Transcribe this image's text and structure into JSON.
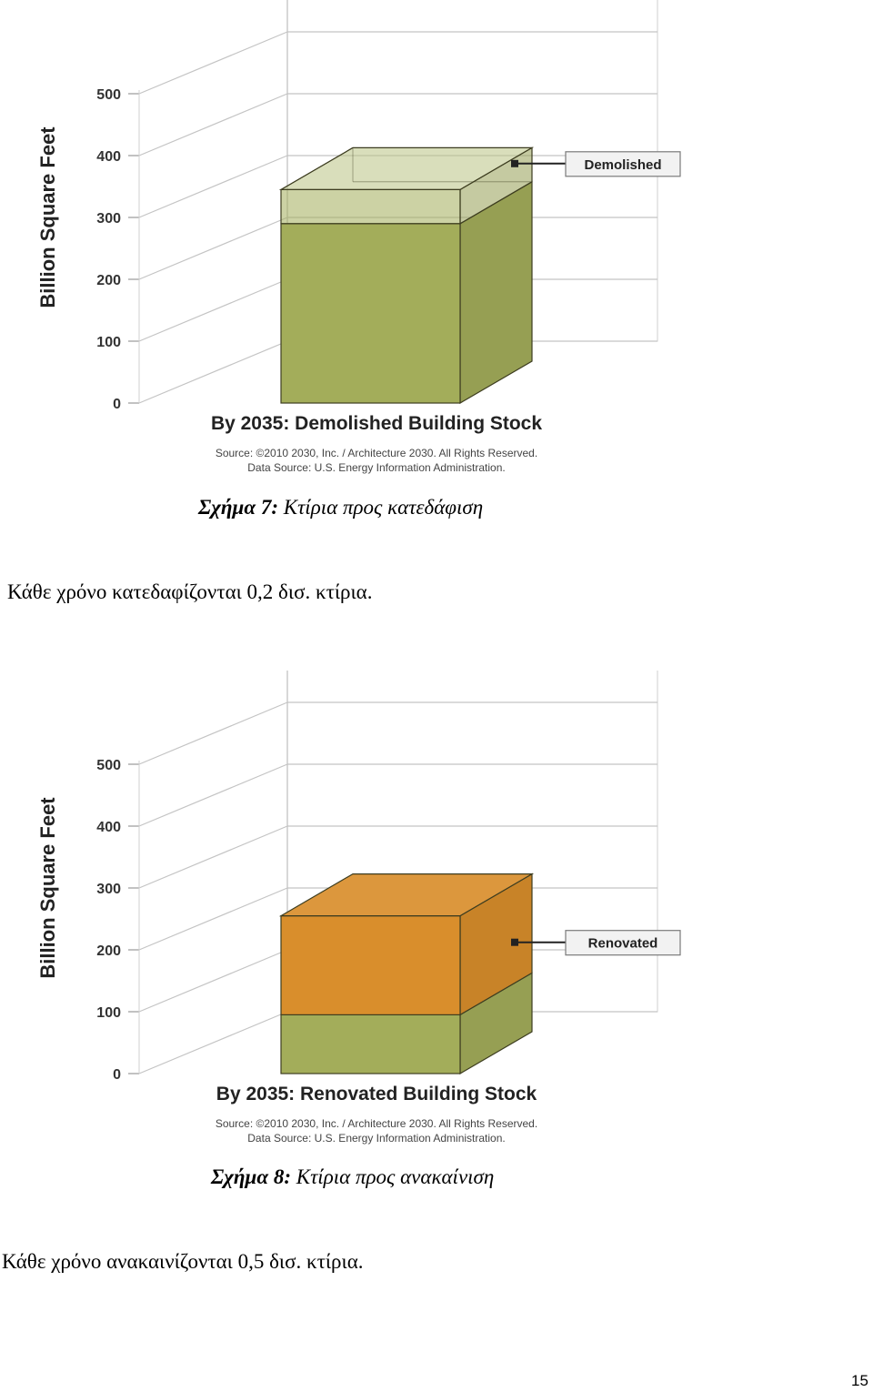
{
  "chart_data": [
    {
      "type": "bar",
      "title": "By 2035: Demolished Building Stock",
      "source_line1": "Source: ©2010 2030, Inc. / Architecture 2030. All Rights Reserved.",
      "source_line2": "Data Source: U.S. Energy Information Administration.",
      "ylabel": "Billion Square Feet",
      "yticks": [
        "0",
        "100",
        "200",
        "300",
        "400",
        "500"
      ],
      "ylim": [
        0,
        500
      ],
      "grid": true,
      "series": [
        {
          "name": "",
          "base": 0,
          "value": 290,
          "color": "#a3ad5a"
        },
        {
          "name": "Demolished",
          "base": 290,
          "value": 55,
          "color": "#a3ad5a",
          "translucent": true
        }
      ],
      "legend": [
        "Demolished"
      ],
      "legend_position": "right"
    },
    {
      "type": "bar",
      "title": "By 2035: Renovated Building Stock",
      "source_line1": "Source: ©2010 2030, Inc. / Architecture 2030. All Rights Reserved.",
      "source_line2": "Data Source: U.S. Energy Information Administration.",
      "ylabel": "Billion Square Feet",
      "yticks": [
        "0",
        "100",
        "200",
        "300",
        "400",
        "500"
      ],
      "ylim": [
        0,
        500
      ],
      "grid": true,
      "series": [
        {
          "name": "",
          "base": 0,
          "value": 95,
          "color": "#a3ad5a"
        },
        {
          "name": "Renovated",
          "base": 95,
          "value": 160,
          "color": "#d98e2c"
        }
      ],
      "legend": [
        "Renovated"
      ],
      "legend_position": "right"
    }
  ],
  "captions": {
    "fig7_label": "Σχήμα 7:",
    "fig7_text": "Κτίρια προς κατεδάφιση",
    "fig8_label": "Σχήμα 8:",
    "fig8_text": "Κτίρια προς ανακαίνιση"
  },
  "body": {
    "text1": "Κάθε χρόνο κατεδαφίζονται 0,2 δισ. κτίρια.",
    "text2": "Κάθε χρόνο ανακαινίζονται 0,5 δισ. κτίρια."
  },
  "page_number": "15"
}
